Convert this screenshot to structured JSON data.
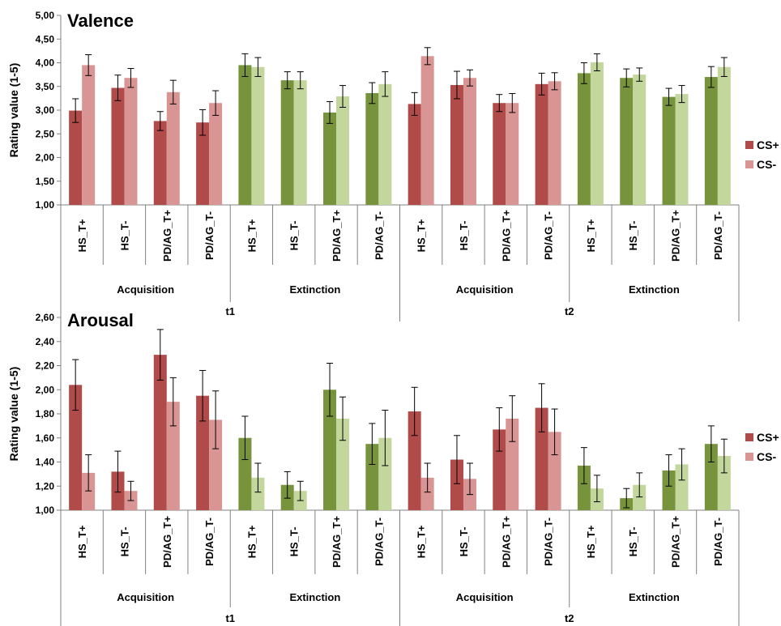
{
  "colors": {
    "acq_cs_plus": "#B04B4A",
    "acq_cs_minus": "#D99594",
    "ext_cs_plus": "#77933C",
    "ext_cs_minus": "#C3D69B",
    "axis": "#808080",
    "error_bar": "#000000"
  },
  "chart_data": [
    {
      "type": "bar",
      "title": "Valence",
      "ylabel": "Rating value (1-5)",
      "ylim": [
        1,
        5
      ],
      "yticks": [
        "1,00",
        "1,50",
        "2,00",
        "2,50",
        "3,00",
        "3,50",
        "4,00",
        "4,50",
        "5,00"
      ],
      "ytick_values": [
        1,
        1.5,
        2,
        2.5,
        3,
        3.5,
        4,
        4.5,
        5
      ],
      "grid": false,
      "legend_position": "right",
      "categories": [
        "HS_T+",
        "HS_T-",
        "PD/AG_T+",
        "PD/AG_T-",
        "HS_T+",
        "HS_T-",
        "PD/AG_T+",
        "PD/AG_T-",
        "HS_T+",
        "HS_T-",
        "PD/AG_T+",
        "PD/AG_T-",
        "HS_T+",
        "HS_T-",
        "PD/AG_T+",
        "PD/AG_T-"
      ],
      "groups": [
        "Acquisition",
        "Extinction",
        "Acquisition",
        "Extinction"
      ],
      "supergroups": [
        "t1",
        "t2"
      ],
      "series": [
        {
          "name": "CS+",
          "values": [
            2.99,
            3.47,
            2.77,
            2.74,
            3.95,
            3.63,
            2.95,
            3.36,
            3.13,
            3.53,
            3.15,
            3.55,
            3.78,
            3.68,
            3.28,
            3.7
          ],
          "errors": [
            0.25,
            0.27,
            0.2,
            0.27,
            0.24,
            0.18,
            0.23,
            0.22,
            0.24,
            0.29,
            0.18,
            0.23,
            0.22,
            0.19,
            0.18,
            0.22
          ]
        },
        {
          "name": "CS-",
          "values": [
            3.95,
            3.68,
            3.38,
            3.15,
            3.91,
            3.63,
            3.29,
            3.55,
            4.14,
            3.68,
            3.15,
            3.61,
            4.01,
            3.75,
            3.34,
            3.91
          ],
          "errors": [
            0.22,
            0.2,
            0.25,
            0.26,
            0.2,
            0.18,
            0.23,
            0.26,
            0.18,
            0.17,
            0.2,
            0.18,
            0.18,
            0.14,
            0.18,
            0.2
          ]
        }
      ]
    },
    {
      "type": "bar",
      "title": "Arousal",
      "ylabel": "Rating value (1-5)",
      "ylim": [
        1,
        2.6
      ],
      "yticks": [
        "1,00",
        "1,20",
        "1,40",
        "1,60",
        "1,80",
        "2,00",
        "2,20",
        "2,40",
        "2,60"
      ],
      "ytick_values": [
        1,
        1.2,
        1.4,
        1.6,
        1.8,
        2,
        2.2,
        2.4,
        2.6
      ],
      "grid": false,
      "legend_position": "right",
      "categories": [
        "HS_T+",
        "HS_T-",
        "PD/AG_T+",
        "PD/AG_T-",
        "HS_T+",
        "HS_T-",
        "PD/AG_T+",
        "PD/AG_T-",
        "HS_T+",
        "HS_T-",
        "PD/AG_T+",
        "PD/AG_T-",
        "HS_T+",
        "HS_T-",
        "PD/AG_T+",
        "PD/AG_T-"
      ],
      "groups": [
        "Acquisition",
        "Extinction",
        "Acquisition",
        "Extinction"
      ],
      "supergroups": [
        "t1",
        "t2"
      ],
      "series": [
        {
          "name": "CS+",
          "values": [
            2.04,
            1.32,
            2.29,
            1.95,
            1.6,
            1.21,
            2.0,
            1.55,
            1.82,
            1.42,
            1.67,
            1.85,
            1.37,
            1.1,
            1.33,
            1.55
          ],
          "errors": [
            0.21,
            0.17,
            0.21,
            0.21,
            0.18,
            0.11,
            0.22,
            0.17,
            0.2,
            0.2,
            0.18,
            0.2,
            0.15,
            0.08,
            0.13,
            0.15
          ]
        },
        {
          "name": "CS-",
          "values": [
            1.31,
            1.16,
            1.9,
            1.75,
            1.27,
            1.16,
            1.76,
            1.6,
            1.27,
            1.26,
            1.76,
            1.65,
            1.18,
            1.21,
            1.38,
            1.45
          ],
          "errors": [
            0.15,
            0.08,
            0.2,
            0.24,
            0.12,
            0.08,
            0.18,
            0.23,
            0.12,
            0.13,
            0.19,
            0.19,
            0.11,
            0.1,
            0.13,
            0.14
          ]
        }
      ]
    }
  ]
}
